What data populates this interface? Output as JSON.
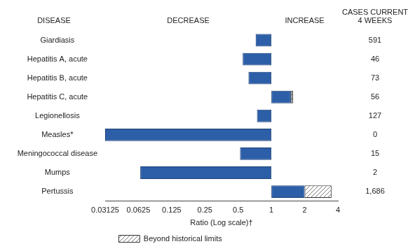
{
  "chart_data": {
    "type": "bar",
    "orientation": "horizontal",
    "log": "x",
    "grid": false,
    "legend": "bottom",
    "color": "#2d5fa8",
    "column_headers": {
      "disease": "DISEASE",
      "decrease": "DECREASE",
      "increase": "INCREASE",
      "cases": [
        "CASES CURRENT",
        "4 WEEKS"
      ]
    },
    "categories": [
      "Giardiasis",
      "Hepatitis A, acute",
      "Hepatitis B, acute",
      "Hepatitis C, acute",
      "Legionellosis",
      "Measles*",
      "Meningococcal disease",
      "Mumps",
      "Pertussis"
    ],
    "values": [
      0.72,
      0.55,
      0.62,
      1.57,
      0.74,
      0.03125,
      0.52,
      0.065,
      3.5
    ],
    "historical_limits": [
      null,
      null,
      null,
      1.5,
      null,
      null,
      null,
      null,
      2.0
    ],
    "historical_limits_name": "Beyond historical limits",
    "cases": [
      591,
      46,
      73,
      56,
      127,
      0,
      15,
      2,
      1686
    ],
    "case_labels": [
      "591",
      "46",
      "73",
      "56",
      "127",
      "0",
      "15",
      "2",
      "1,686"
    ],
    "x_label": "Ratio (Log scale)†",
    "xlim": [
      0.03125,
      4
    ],
    "xticks": [
      0.03125,
      0.0625,
      0.125,
      0.25,
      0.5,
      1,
      2,
      4
    ]
  }
}
